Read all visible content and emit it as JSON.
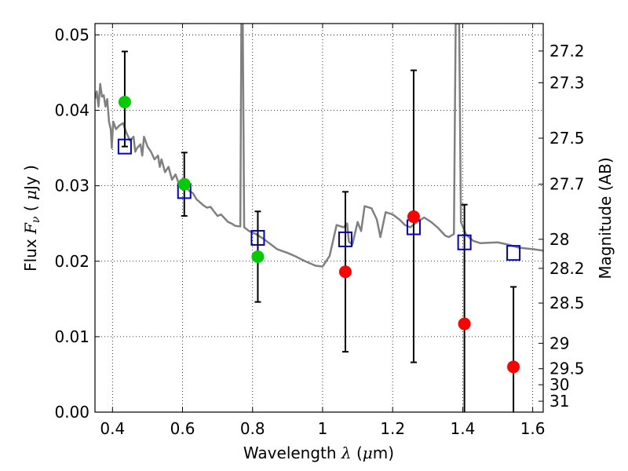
{
  "chart_data": {
    "type": "scatter",
    "xlabel": "Wavelength  λ (μm)",
    "ylabel": "Flux  F_ν  ( μJy )",
    "ylabel_right": "Magnitude (AB)",
    "xlim": [
      0.35,
      1.63
    ],
    "ylim": [
      0.0,
      0.0515
    ],
    "grid": true,
    "x_ticks": [
      0.4,
      0.6,
      0.8,
      1.0,
      1.2,
      1.4,
      1.6
    ],
    "x_tick_labels": [
      "0.4",
      "0.6",
      "0.8",
      "1",
      "1.2",
      "1.4",
      "1.6"
    ],
    "y_ticks": [
      0.0,
      0.01,
      0.02,
      0.03,
      0.04,
      0.05
    ],
    "y_tick_labels": [
      "0.00",
      "0.01",
      "0.02",
      "0.03",
      "0.04",
      "0.05"
    ],
    "right_ticks": [
      {
        "label": "27.2",
        "mag": 27.2
      },
      {
        "label": "27.3",
        "mag": 27.3
      },
      {
        "label": "27.5",
        "mag": 27.5
      },
      {
        "label": "27.7",
        "mag": 27.7
      },
      {
        "label": "28",
        "mag": 28.0
      },
      {
        "label": "28.2",
        "mag": 28.2
      },
      {
        "label": "28.5",
        "mag": 28.5
      },
      {
        "label": "29",
        "mag": 29.0
      },
      {
        "label": "29.5",
        "mag": 29.5
      },
      {
        "label": "30",
        "mag": 30.0
      },
      {
        "label": "31",
        "mag": 31.0
      }
    ],
    "series": [
      {
        "kind": "line",
        "color": "#808080",
        "points": [
          [
            0.35,
            0.0415
          ],
          [
            0.355,
            0.0425
          ],
          [
            0.36,
            0.0405
          ],
          [
            0.365,
            0.0435
          ],
          [
            0.37,
            0.0418
          ],
          [
            0.375,
            0.042
          ],
          [
            0.38,
            0.0405
          ],
          [
            0.385,
            0.0415
          ],
          [
            0.39,
            0.0385
          ],
          [
            0.395,
            0.0375
          ],
          [
            0.398,
            0.035
          ],
          [
            0.402,
            0.0385
          ],
          [
            0.41,
            0.0375
          ],
          [
            0.42,
            0.038
          ],
          [
            0.43,
            0.0383
          ],
          [
            0.44,
            0.037
          ],
          [
            0.45,
            0.036
          ],
          [
            0.46,
            0.0365
          ],
          [
            0.465,
            0.0345
          ],
          [
            0.47,
            0.035
          ],
          [
            0.48,
            0.0355
          ],
          [
            0.485,
            0.034
          ],
          [
            0.49,
            0.0365
          ],
          [
            0.5,
            0.0352
          ],
          [
            0.51,
            0.0345
          ],
          [
            0.52,
            0.0335
          ],
          [
            0.53,
            0.034
          ],
          [
            0.535,
            0.0325
          ],
          [
            0.54,
            0.0335
          ],
          [
            0.55,
            0.0318
          ],
          [
            0.56,
            0.0325
          ],
          [
            0.57,
            0.0308
          ],
          [
            0.58,
            0.0315
          ],
          [
            0.59,
            0.0302
          ],
          [
            0.6,
            0.0305
          ],
          [
            0.61,
            0.0298
          ],
          [
            0.62,
            0.0293
          ],
          [
            0.63,
            0.029
          ],
          [
            0.64,
            0.0282
          ],
          [
            0.65,
            0.0278
          ],
          [
            0.66,
            0.0274
          ],
          [
            0.67,
            0.0271
          ],
          [
            0.68,
            0.0272
          ],
          [
            0.69,
            0.0266
          ],
          [
            0.7,
            0.026
          ],
          [
            0.71,
            0.0262
          ],
          [
            0.72,
            0.0257
          ],
          [
            0.73,
            0.0252
          ],
          [
            0.74,
            0.025
          ],
          [
            0.75,
            0.0247
          ],
          [
            0.765,
            0.0246
          ],
          [
            0.768,
            0.0515
          ],
          [
            0.772,
            0.0515
          ],
          [
            0.776,
            0.0245
          ],
          [
            0.79,
            0.024
          ],
          [
            0.81,
            0.0236
          ],
          [
            0.83,
            0.023
          ],
          [
            0.85,
            0.0223
          ],
          [
            0.87,
            0.0216
          ],
          [
            0.9,
            0.0211
          ],
          [
            0.92,
            0.0207
          ],
          [
            0.95,
            0.02
          ],
          [
            0.98,
            0.0194
          ],
          [
            1.0,
            0.0193
          ],
          [
            1.02,
            0.0207
          ],
          [
            1.04,
            0.0248
          ],
          [
            1.06,
            0.0245
          ],
          [
            1.07,
            0.025
          ],
          [
            1.075,
            0.0226
          ],
          [
            1.085,
            0.0222
          ],
          [
            1.1,
            0.0252
          ],
          [
            1.11,
            0.024
          ],
          [
            1.12,
            0.0273
          ],
          [
            1.14,
            0.027
          ],
          [
            1.155,
            0.0255
          ],
          [
            1.165,
            0.0232
          ],
          [
            1.18,
            0.0265
          ],
          [
            1.2,
            0.0262
          ],
          [
            1.22,
            0.0255
          ],
          [
            1.235,
            0.0248
          ],
          [
            1.25,
            0.0245
          ],
          [
            1.27,
            0.0252
          ],
          [
            1.29,
            0.0258
          ],
          [
            1.31,
            0.0252
          ],
          [
            1.33,
            0.0244
          ],
          [
            1.35,
            0.0234
          ],
          [
            1.36,
            0.0232
          ],
          [
            1.375,
            0.0236
          ],
          [
            1.38,
            0.0515
          ],
          [
            1.39,
            0.0515
          ],
          [
            1.395,
            0.0252
          ],
          [
            1.41,
            0.0235
          ],
          [
            1.43,
            0.0227
          ],
          [
            1.45,
            0.0224
          ],
          [
            1.5,
            0.0225
          ],
          [
            1.53,
            0.0222
          ],
          [
            1.56,
            0.0218
          ],
          [
            1.6,
            0.0216
          ],
          [
            1.63,
            0.0214
          ]
        ]
      },
      {
        "kind": "square",
        "color": "#0000cc",
        "points": [
          [
            0.435,
            0.0352
          ],
          [
            0.605,
            0.0293
          ],
          [
            0.815,
            0.0231
          ],
          [
            1.065,
            0.0229
          ],
          [
            1.26,
            0.0245
          ],
          [
            1.405,
            0.0225
          ],
          [
            1.545,
            0.0211
          ]
        ]
      },
      {
        "kind": "errorbar",
        "color": "#000000",
        "points": [
          [
            0.435,
            0.0352,
            0.0478
          ],
          [
            0.605,
            0.026,
            0.0344
          ],
          [
            0.815,
            0.0146,
            0.0266
          ],
          [
            1.065,
            0.008,
            0.0292
          ],
          [
            1.26,
            0.0066,
            0.0453
          ],
          [
            1.405,
            0.0,
            0.0275
          ],
          [
            1.545,
            0.0,
            0.0166
          ]
        ]
      },
      {
        "kind": "circle",
        "color": "#00cc00",
        "points": [
          [
            0.435,
            0.0411
          ],
          [
            0.605,
            0.0302
          ],
          [
            0.815,
            0.0206
          ]
        ]
      },
      {
        "kind": "circle",
        "color": "#ff0000",
        "points": [
          [
            1.065,
            0.0186
          ],
          [
            1.26,
            0.0259
          ],
          [
            1.405,
            0.0117
          ],
          [
            1.545,
            0.006
          ]
        ]
      }
    ]
  }
}
